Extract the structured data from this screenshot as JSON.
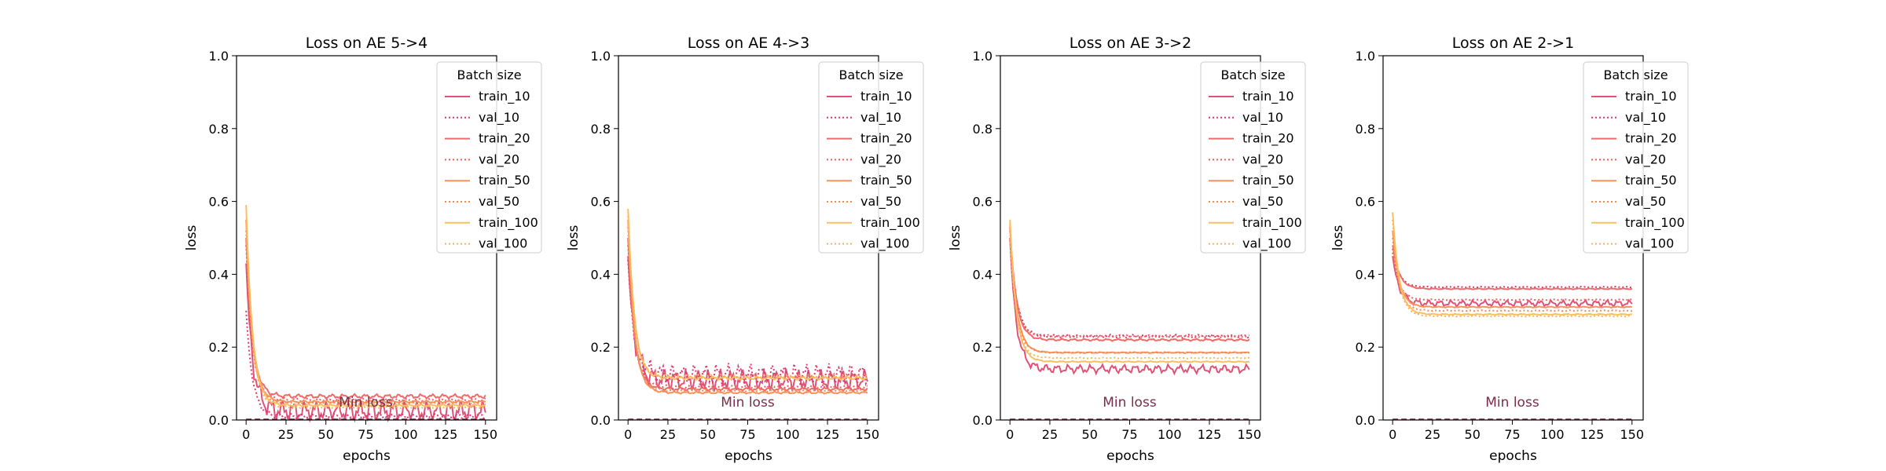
{
  "chart_data": [
    {
      "type": "line",
      "title": "Loss on AE 5->4",
      "xlabel": "epochs",
      "ylabel": "loss",
      "xlim": [
        -6,
        157
      ],
      "ylim": [
        0,
        1.0
      ],
      "xticks": [
        "0",
        "25",
        "50",
        "75",
        "100",
        "125",
        "150"
      ],
      "yticks": [
        "0.0",
        "0.2",
        "0.4",
        "0.6",
        "0.8",
        "1.0"
      ],
      "legend": {
        "title": "Batch size",
        "loc": "upper right"
      },
      "annotation": {
        "text": "Min loss",
        "x": 75,
        "y": 0.05
      },
      "series": [
        {
          "name": "train_10",
          "style": "solid",
          "color": "#e05277",
          "start": 0.43,
          "end": 0.025,
          "noise": 0.02
        },
        {
          "name": "val_10",
          "style": "dotted",
          "color": "#e2356e",
          "start": 0.3,
          "end": 0.01,
          "noise": 0.005
        },
        {
          "name": "train_20",
          "style": "solid",
          "color": "#ef6b6b",
          "start": 0.5,
          "end": 0.065,
          "noise": 0.004
        },
        {
          "name": "val_20",
          "style": "dotted",
          "color": "#ee5c5c",
          "start": 0.48,
          "end": 0.055,
          "noise": 0.003
        },
        {
          "name": "train_50",
          "style": "solid",
          "color": "#f7925c",
          "start": 0.55,
          "end": 0.05,
          "noise": 0.002
        },
        {
          "name": "val_50",
          "style": "dotted",
          "color": "#f48a52",
          "start": 0.52,
          "end": 0.045,
          "noise": 0.002
        },
        {
          "name": "train_100",
          "style": "solid",
          "color": "#fbbf63",
          "start": 0.59,
          "end": 0.04,
          "noise": 0.002
        },
        {
          "name": "val_100",
          "style": "dotted",
          "color": "#f9b456",
          "start": 0.55,
          "end": 0.035,
          "noise": 0.002
        }
      ]
    },
    {
      "type": "line",
      "title": "Loss on AE 4->3",
      "xlabel": "epochs",
      "ylabel": "loss",
      "xlim": [
        -6,
        157
      ],
      "ylim": [
        0,
        1.0
      ],
      "xticks": [
        "0",
        "25",
        "50",
        "75",
        "100",
        "125",
        "150"
      ],
      "yticks": [
        "0.0",
        "0.2",
        "0.4",
        "0.6",
        "0.8",
        "1.0"
      ],
      "legend": {
        "title": "Batch size",
        "loc": "upper right"
      },
      "annotation": {
        "text": "Min loss",
        "x": 75,
        "y": 0.05
      },
      "series": [
        {
          "name": "train_10",
          "style": "solid",
          "color": "#e05277",
          "start": 0.45,
          "end": 0.11,
          "noise": 0.02
        },
        {
          "name": "val_10",
          "style": "dotted",
          "color": "#e2356e",
          "start": 0.44,
          "end": 0.125,
          "noise": 0.02
        },
        {
          "name": "train_20",
          "style": "solid",
          "color": "#ef6b6b",
          "start": 0.5,
          "end": 0.085,
          "noise": 0.003
        },
        {
          "name": "val_20",
          "style": "dotted",
          "color": "#ee5c5c",
          "start": 0.48,
          "end": 0.09,
          "noise": 0.003
        },
        {
          "name": "train_50",
          "style": "solid",
          "color": "#f7925c",
          "start": 0.55,
          "end": 0.075,
          "noise": 0.002
        },
        {
          "name": "val_50",
          "style": "dotted",
          "color": "#f48a52",
          "start": 0.53,
          "end": 0.08,
          "noise": 0.002
        },
        {
          "name": "train_100",
          "style": "solid",
          "color": "#fbbf63",
          "start": 0.58,
          "end": 0.115,
          "noise": 0.003
        },
        {
          "name": "val_100",
          "style": "dotted",
          "color": "#f9b456",
          "start": 0.56,
          "end": 0.12,
          "noise": 0.003
        }
      ]
    },
    {
      "type": "line",
      "title": "Loss on AE 3->2",
      "xlabel": "epochs",
      "ylabel": "loss",
      "xlim": [
        -6,
        157
      ],
      "ylim": [
        0,
        1.0
      ],
      "xticks": [
        "0",
        "25",
        "50",
        "75",
        "100",
        "125",
        "150"
      ],
      "yticks": [
        "0.0",
        "0.2",
        "0.4",
        "0.6",
        "0.8",
        "1.0"
      ],
      "legend": {
        "title": "Batch size",
        "loc": "upper right"
      },
      "annotation": {
        "text": "Min loss",
        "x": 75,
        "y": 0.05
      },
      "series": [
        {
          "name": "train_10",
          "style": "solid",
          "color": "#e05277",
          "start": 0.5,
          "end": 0.14,
          "noise": 0.008
        },
        {
          "name": "val_10",
          "style": "dotted",
          "color": "#e2356e",
          "start": 0.52,
          "end": 0.23,
          "noise": 0.003
        },
        {
          "name": "train_20",
          "style": "solid",
          "color": "#ef6b6b",
          "start": 0.53,
          "end": 0.22,
          "noise": 0.002
        },
        {
          "name": "val_20",
          "style": "dotted",
          "color": "#ee5c5c",
          "start": 0.5,
          "end": 0.23,
          "noise": 0.002
        },
        {
          "name": "train_50",
          "style": "solid",
          "color": "#f7925c",
          "start": 0.54,
          "end": 0.185,
          "noise": 0.001
        },
        {
          "name": "val_50",
          "style": "dotted",
          "color": "#f48a52",
          "start": 0.5,
          "end": 0.185,
          "noise": 0.001
        },
        {
          "name": "train_100",
          "style": "solid",
          "color": "#fbbf63",
          "start": 0.55,
          "end": 0.16,
          "noise": 0.001
        },
        {
          "name": "val_100",
          "style": "dotted",
          "color": "#f9b456",
          "start": 0.52,
          "end": 0.17,
          "noise": 0.001
        }
      ]
    },
    {
      "type": "line",
      "title": "Loss on AE 2->1",
      "xlabel": "epochs",
      "ylabel": "loss",
      "xlim": [
        -6,
        157
      ],
      "ylim": [
        0,
        1.0
      ],
      "xticks": [
        "0",
        "25",
        "50",
        "75",
        "100",
        "125",
        "150"
      ],
      "yticks": [
        "0.0",
        "0.2",
        "0.4",
        "0.6",
        "0.8",
        "1.0"
      ],
      "legend": {
        "title": "Batch size",
        "loc": "upper right"
      },
      "annotation": {
        "text": "Min loss",
        "x": 75,
        "y": 0.05
      },
      "series": [
        {
          "name": "train_10",
          "style": "solid",
          "color": "#e05277",
          "start": 0.45,
          "end": 0.32,
          "noise": 0.006
        },
        {
          "name": "val_10",
          "style": "dotted",
          "color": "#e2356e",
          "start": 0.47,
          "end": 0.365,
          "noise": 0.001
        },
        {
          "name": "train_20",
          "style": "solid",
          "color": "#ef6b6b",
          "start": 0.48,
          "end": 0.36,
          "noise": 0.001
        },
        {
          "name": "val_20",
          "style": "dotted",
          "color": "#ee5c5c",
          "start": 0.46,
          "end": 0.33,
          "noise": 0.001
        },
        {
          "name": "train_50",
          "style": "solid",
          "color": "#f7925c",
          "start": 0.52,
          "end": 0.31,
          "noise": 0.001
        },
        {
          "name": "val_50",
          "style": "dotted",
          "color": "#f48a52",
          "start": 0.5,
          "end": 0.3,
          "noise": 0.001
        },
        {
          "name": "train_100",
          "style": "solid",
          "color": "#fbbf63",
          "start": 0.57,
          "end": 0.29,
          "noise": 0.001
        },
        {
          "name": "val_100",
          "style": "dotted",
          "color": "#f9b456",
          "start": 0.55,
          "end": 0.285,
          "noise": 0.001
        }
      ]
    }
  ]
}
